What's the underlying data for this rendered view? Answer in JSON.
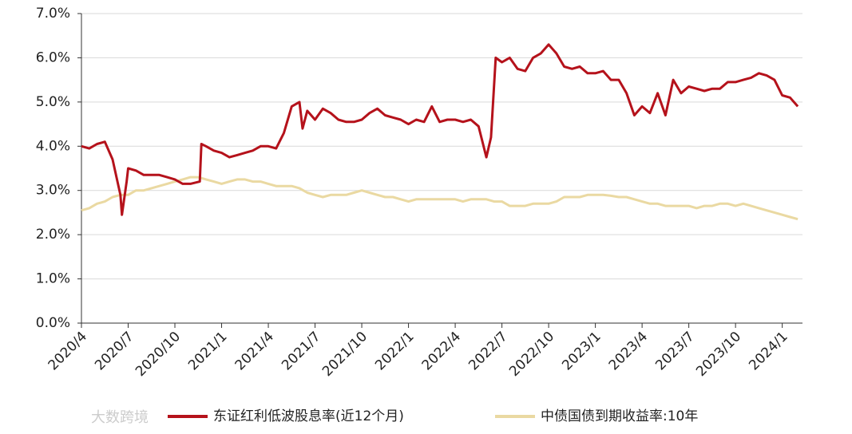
{
  "chart_data": {
    "type": "line",
    "watermark": "大数跨境",
    "xlim": [
      0,
      46.3
    ],
    "xticks": [
      {
        "value": 0,
        "label": "2020/4"
      },
      {
        "value": 3,
        "label": "2020/7"
      },
      {
        "value": 6,
        "label": "2020/10"
      },
      {
        "value": 9,
        "label": "2021/1"
      },
      {
        "value": 12,
        "label": "2021/4"
      },
      {
        "value": 15,
        "label": "2021/7"
      },
      {
        "value": 18,
        "label": "2021/10"
      },
      {
        "value": 21,
        "label": "2022/1"
      },
      {
        "value": 24,
        "label": "2022/4"
      },
      {
        "value": 27,
        "label": "2022/7"
      },
      {
        "value": 30,
        "label": "2022/10"
      },
      {
        "value": 33,
        "label": "2023/1"
      },
      {
        "value": 36,
        "label": "2023/4"
      },
      {
        "value": 39,
        "label": "2023/7"
      },
      {
        "value": 42,
        "label": "2023/10"
      },
      {
        "value": 45,
        "label": "2024/1"
      }
    ],
    "ylim": [
      0,
      7
    ],
    "yticks": [
      {
        "value": 0,
        "label": "0.0%"
      },
      {
        "value": 1,
        "label": "1.0%"
      },
      {
        "value": 2,
        "label": "2.0%"
      },
      {
        "value": 3,
        "label": "3.0%"
      },
      {
        "value": 4,
        "label": "4.0%"
      },
      {
        "value": 5,
        "label": "5.0%"
      },
      {
        "value": 6,
        "label": "6.0%"
      },
      {
        "value": 7,
        "label": "7.0%"
      }
    ],
    "grid": true,
    "legend": "bottom",
    "series": [
      {
        "name": "东证红利低波股息率(近12个月)",
        "color": "#b5121b",
        "x": [
          0,
          0.5,
          1,
          1.5,
          2,
          2.5,
          2.6,
          2.9,
          3,
          3.5,
          4,
          4.5,
          5,
          5.5,
          6,
          6.5,
          7,
          7.6,
          7.7,
          8,
          8.5,
          9,
          9.5,
          10,
          10.5,
          11,
          11.5,
          12,
          12.5,
          13,
          13.5,
          14,
          14.2,
          14.5,
          15,
          15.5,
          16,
          16.5,
          17,
          17.5,
          18,
          18.5,
          19,
          19.5,
          20,
          20.5,
          21,
          21.5,
          22,
          22.5,
          23,
          23.5,
          24,
          24.5,
          25,
          25.5,
          26,
          26.3,
          26.6,
          27,
          27.5,
          28,
          28.5,
          29,
          29.5,
          30,
          30.5,
          31,
          31.5,
          32,
          32.5,
          33,
          33.5,
          34,
          34.5,
          35,
          35.5,
          36,
          36.5,
          37,
          37.5,
          38,
          38.5,
          39,
          39.5,
          40,
          40.5,
          41,
          41.5,
          42,
          42.5,
          43,
          43.5,
          44,
          44.5,
          45,
          45.5,
          46
        ],
        "values": [
          4.0,
          3.95,
          4.05,
          4.1,
          3.7,
          2.9,
          2.45,
          3.2,
          3.5,
          3.45,
          3.35,
          3.35,
          3.35,
          3.3,
          3.25,
          3.15,
          3.15,
          3.2,
          4.05,
          4.0,
          3.9,
          3.85,
          3.75,
          3.8,
          3.85,
          3.9,
          4.0,
          4.0,
          3.95,
          4.3,
          4.9,
          5.0,
          4.4,
          4.8,
          4.6,
          4.85,
          4.75,
          4.6,
          4.55,
          4.55,
          4.6,
          4.75,
          4.85,
          4.7,
          4.65,
          4.6,
          4.5,
          4.6,
          4.55,
          4.9,
          4.55,
          4.6,
          4.6,
          4.55,
          4.6,
          4.45,
          3.75,
          4.2,
          6.0,
          5.9,
          6.0,
          5.75,
          5.7,
          6.0,
          6.1,
          6.3,
          6.1,
          5.8,
          5.75,
          5.8,
          5.65,
          5.65,
          5.7,
          5.5,
          5.5,
          5.2,
          4.7,
          4.9,
          4.75,
          5.2,
          4.7,
          5.5,
          5.2,
          5.35,
          5.3,
          5.25,
          5.3,
          5.3,
          5.45,
          5.45,
          5.5,
          5.55,
          5.65,
          5.6,
          5.5,
          5.15,
          5.1,
          4.9
        ]
      },
      {
        "name": "中债国债到期收益率:10年",
        "color": "#ead9a2",
        "x": [
          0,
          0.5,
          1,
          1.5,
          2,
          2.5,
          3,
          3.5,
          4,
          4.5,
          5,
          5.5,
          6,
          6.5,
          7,
          7.5,
          8,
          8.5,
          9,
          9.5,
          10,
          10.5,
          11,
          11.5,
          12,
          12.5,
          13,
          13.5,
          14,
          14.5,
          15,
          15.5,
          16,
          16.5,
          17,
          17.5,
          18,
          18.5,
          19,
          19.5,
          20,
          20.5,
          21,
          21.5,
          22,
          22.5,
          23,
          23.5,
          24,
          24.5,
          25,
          25.5,
          26,
          26.5,
          27,
          27.5,
          28,
          28.5,
          29,
          29.5,
          30,
          30.5,
          31,
          31.5,
          32,
          32.5,
          33,
          33.5,
          34,
          34.5,
          35,
          35.5,
          36,
          36.5,
          37,
          37.5,
          38,
          38.5,
          39,
          39.5,
          40,
          40.5,
          41,
          41.5,
          42,
          42.5,
          43,
          43.5,
          44,
          44.5,
          45,
          45.5,
          46
        ],
        "values": [
          2.55,
          2.6,
          2.7,
          2.75,
          2.85,
          2.9,
          2.9,
          3.0,
          3.0,
          3.05,
          3.1,
          3.15,
          3.2,
          3.25,
          3.3,
          3.3,
          3.25,
          3.2,
          3.15,
          3.2,
          3.25,
          3.25,
          3.2,
          3.2,
          3.15,
          3.1,
          3.1,
          3.1,
          3.05,
          2.95,
          2.9,
          2.85,
          2.9,
          2.9,
          2.9,
          2.95,
          3.0,
          2.95,
          2.9,
          2.85,
          2.85,
          2.8,
          2.75,
          2.8,
          2.8,
          2.8,
          2.8,
          2.8,
          2.8,
          2.75,
          2.8,
          2.8,
          2.8,
          2.75,
          2.75,
          2.65,
          2.65,
          2.65,
          2.7,
          2.7,
          2.7,
          2.75,
          2.85,
          2.85,
          2.85,
          2.9,
          2.9,
          2.9,
          2.88,
          2.85,
          2.85,
          2.8,
          2.75,
          2.7,
          2.7,
          2.65,
          2.65,
          2.65,
          2.65,
          2.6,
          2.65,
          2.65,
          2.7,
          2.7,
          2.65,
          2.7,
          2.65,
          2.6,
          2.55,
          2.5,
          2.45,
          2.4,
          2.35
        ]
      }
    ]
  }
}
